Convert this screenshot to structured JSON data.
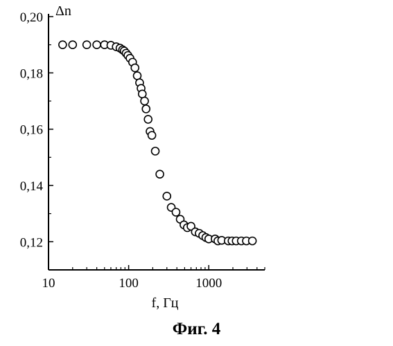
{
  "figure": {
    "caption": "Фиг. 4"
  },
  "chart_data": {
    "type": "scatter",
    "xlabel": "f, Гц",
    "ylabel": "Δn",
    "x_scale": "log",
    "xlim": [
      10,
      5000
    ],
    "ylim": [
      0.11,
      0.2
    ],
    "x_ticks": [
      10,
      100,
      1000
    ],
    "x_tick_labels": [
      "10",
      "100",
      "1000"
    ],
    "y_ticks": [
      0.12,
      0.14,
      0.16,
      0.18,
      0.2
    ],
    "y_tick_labels": [
      "0,12",
      "0,14",
      "0,16",
      "0,18",
      "0,20"
    ],
    "marker": "open-circle",
    "grid": false,
    "points": [
      {
        "x": 15,
        "y": 0.19
      },
      {
        "x": 20,
        "y": 0.19
      },
      {
        "x": 30,
        "y": 0.19
      },
      {
        "x": 40,
        "y": 0.19
      },
      {
        "x": 50,
        "y": 0.19
      },
      {
        "x": 60,
        "y": 0.1898
      },
      {
        "x": 70,
        "y": 0.1893
      },
      {
        "x": 78,
        "y": 0.1888
      },
      {
        "x": 84,
        "y": 0.1882
      },
      {
        "x": 88,
        "y": 0.1878
      },
      {
        "x": 93,
        "y": 0.187
      },
      {
        "x": 98,
        "y": 0.1862
      },
      {
        "x": 104,
        "y": 0.1852
      },
      {
        "x": 112,
        "y": 0.1838
      },
      {
        "x": 120,
        "y": 0.1818
      },
      {
        "x": 128,
        "y": 0.179
      },
      {
        "x": 137,
        "y": 0.1765
      },
      {
        "x": 143,
        "y": 0.1745
      },
      {
        "x": 148,
        "y": 0.1725
      },
      {
        "x": 158,
        "y": 0.17
      },
      {
        "x": 165,
        "y": 0.1672
      },
      {
        "x": 175,
        "y": 0.1635
      },
      {
        "x": 185,
        "y": 0.1592
      },
      {
        "x": 195,
        "y": 0.1578
      },
      {
        "x": 215,
        "y": 0.1522
      },
      {
        "x": 245,
        "y": 0.144
      },
      {
        "x": 300,
        "y": 0.1362
      },
      {
        "x": 340,
        "y": 0.1322
      },
      {
        "x": 390,
        "y": 0.1305
      },
      {
        "x": 440,
        "y": 0.128
      },
      {
        "x": 490,
        "y": 0.126
      },
      {
        "x": 540,
        "y": 0.125
      },
      {
        "x": 600,
        "y": 0.1255
      },
      {
        "x": 680,
        "y": 0.1235
      },
      {
        "x": 760,
        "y": 0.123
      },
      {
        "x": 840,
        "y": 0.1222
      },
      {
        "x": 920,
        "y": 0.1215
      },
      {
        "x": 1000,
        "y": 0.121
      },
      {
        "x": 1200,
        "y": 0.121
      },
      {
        "x": 1300,
        "y": 0.1203
      },
      {
        "x": 1450,
        "y": 0.1205
      },
      {
        "x": 1750,
        "y": 0.1203
      },
      {
        "x": 1950,
        "y": 0.1203
      },
      {
        "x": 2200,
        "y": 0.1203
      },
      {
        "x": 2550,
        "y": 0.1203
      },
      {
        "x": 2950,
        "y": 0.1203
      },
      {
        "x": 3500,
        "y": 0.1203
      }
    ]
  }
}
